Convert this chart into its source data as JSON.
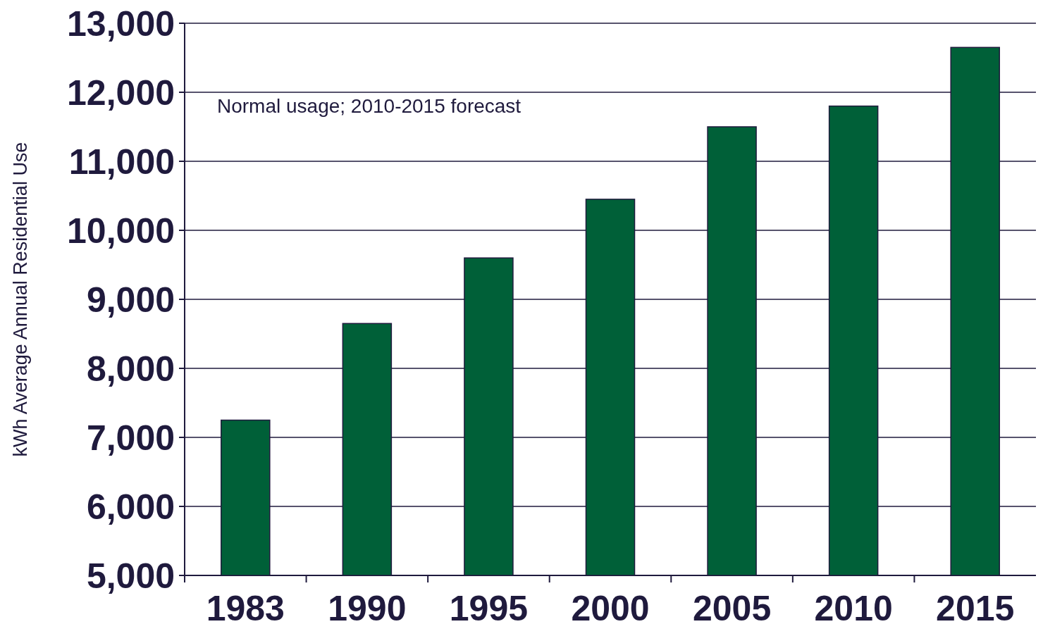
{
  "chart_data": {
    "type": "bar",
    "ylabel": "kWh Average Annual Residential Use",
    "annotations": [
      "Normal usage; 2010-2015 forecast"
    ],
    "categories": [
      "1983",
      "1990",
      "1995",
      "2000",
      "2005",
      "2010",
      "2015"
    ],
    "values": [
      7250,
      8650,
      9600,
      10450,
      11500,
      11800,
      12650
    ],
    "color": "#006038",
    "ylim": [
      5000,
      13000
    ],
    "yticks": [
      {
        "value": 5000,
        "label": "5,000"
      },
      {
        "value": 6000,
        "label": "6,000"
      },
      {
        "value": 7000,
        "label": "7,000"
      },
      {
        "value": 8000,
        "label": "8,000"
      },
      {
        "value": 9000,
        "label": "9,000"
      },
      {
        "value": 10000,
        "label": "10,000"
      },
      {
        "value": 11000,
        "label": "11,000"
      },
      {
        "value": 12000,
        "label": "12,000"
      },
      {
        "value": 13000,
        "label": "13,000"
      }
    ],
    "grid": "y"
  }
}
